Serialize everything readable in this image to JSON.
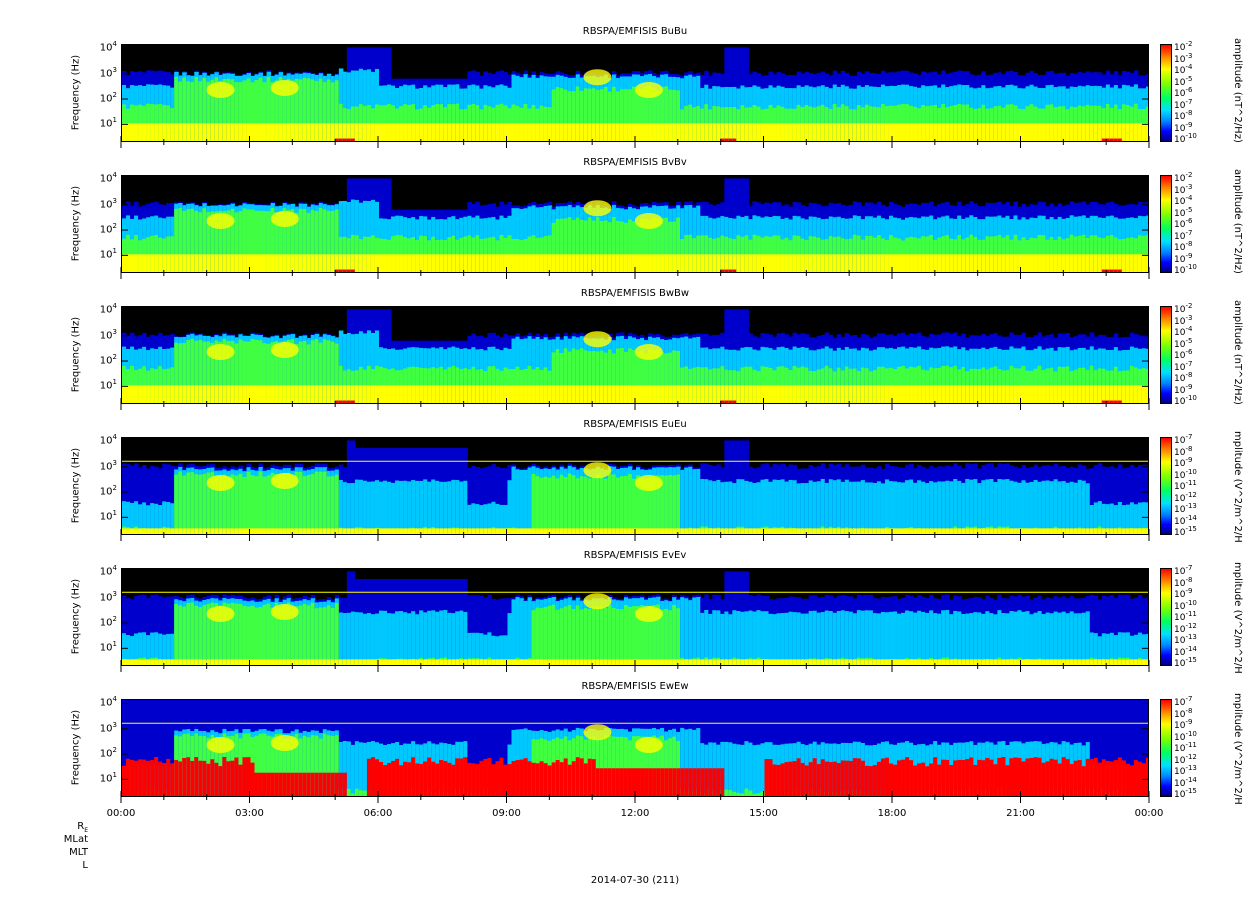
{
  "chart_data": [
    {
      "type": "heatmap",
      "title": "RBSPA/EMFISIS  BuBu",
      "ylabel": "Frequency (Hz)",
      "zlabel": "amplitude (nT^2/Hz)",
      "yscale": "log",
      "ylim": [
        2,
        15000
      ],
      "yticks": [
        "10",
        "10",
        "10",
        "10"
      ],
      "yexps": [
        "1",
        "2",
        "3",
        "4"
      ],
      "zticks": [
        "10",
        "10",
        "10",
        "10",
        "10",
        "10",
        "10",
        "10",
        "10"
      ],
      "zexps": [
        "-2",
        "-3",
        "-4",
        "-5",
        "-6",
        "-7",
        "-8",
        "-9",
        "-10"
      ]
    },
    {
      "type": "heatmap",
      "title": "RBSPA/EMFISIS  BvBv",
      "ylabel": "Frequency (Hz)",
      "zlabel": "amplitude (nT^2/Hz)",
      "yscale": "log",
      "ylim": [
        2,
        15000
      ],
      "yticks": [
        "10",
        "10",
        "10",
        "10"
      ],
      "yexps": [
        "1",
        "2",
        "3",
        "4"
      ],
      "zticks": [
        "10",
        "10",
        "10",
        "10",
        "10",
        "10",
        "10",
        "10",
        "10"
      ],
      "zexps": [
        "-2",
        "-3",
        "-4",
        "-5",
        "-6",
        "-7",
        "-8",
        "-9",
        "-10"
      ]
    },
    {
      "type": "heatmap",
      "title": "RBSPA/EMFISIS  BwBw",
      "ylabel": "Frequency (Hz)",
      "zlabel": "amplitude (nT^2/Hz)",
      "yscale": "log",
      "ylim": [
        2,
        15000
      ],
      "yticks": [
        "10",
        "10",
        "10",
        "10"
      ],
      "yexps": [
        "1",
        "2",
        "3",
        "4"
      ],
      "zticks": [
        "10",
        "10",
        "10",
        "10",
        "10",
        "10",
        "10",
        "10",
        "10"
      ],
      "zexps": [
        "-2",
        "-3",
        "-4",
        "-5",
        "-6",
        "-7",
        "-8",
        "-9",
        "-10"
      ]
    },
    {
      "type": "heatmap",
      "title": "RBSPA/EMFISIS  EuEu",
      "ylabel": "Frequency (Hz)",
      "zlabel": "mplitude (V^2/m^2/H",
      "yscale": "log",
      "ylim": [
        2,
        15000
      ],
      "yticks": [
        "10",
        "10",
        "10",
        "10"
      ],
      "yexps": [
        "1",
        "2",
        "3",
        "4"
      ],
      "zticks": [
        "10",
        "10",
        "10",
        "10",
        "10",
        "10",
        "10",
        "10",
        "10"
      ],
      "zexps": [
        "-7",
        "-8",
        "-9",
        "-10",
        "-11",
        "-12",
        "-13",
        "-14",
        "-15"
      ]
    },
    {
      "type": "heatmap",
      "title": "RBSPA/EMFISIS  EvEv",
      "ylabel": "Frequency (Hz)",
      "zlabel": "mplitude (V^2/m^2/H",
      "yscale": "log",
      "ylim": [
        2,
        15000
      ],
      "yticks": [
        "10",
        "10",
        "10",
        "10"
      ],
      "yexps": [
        "1",
        "2",
        "3",
        "4"
      ],
      "zticks": [
        "10",
        "10",
        "10",
        "10",
        "10",
        "10",
        "10",
        "10",
        "10"
      ],
      "zexps": [
        "-7",
        "-8",
        "-9",
        "-10",
        "-11",
        "-12",
        "-13",
        "-14",
        "-15"
      ]
    },
    {
      "type": "heatmap",
      "title": "RBSPA/EMFISIS  EwEw",
      "ylabel": "Frequency (Hz)",
      "zlabel": "mplitude (V^2/m^2/H",
      "yscale": "log",
      "ylim": [
        2,
        15000
      ],
      "yticks": [
        "10",
        "10",
        "10",
        "10"
      ],
      "yexps": [
        "1",
        "2",
        "3",
        "4"
      ],
      "zticks": [
        "10",
        "10",
        "10",
        "10",
        "10",
        "10",
        "10",
        "10",
        "10"
      ],
      "zexps": [
        "-7",
        "-8",
        "-9",
        "-10",
        "-11",
        "-12",
        "-13",
        "-14",
        "-15"
      ]
    }
  ],
  "x_axis": {
    "ticks": [
      "00:00",
      "03:00",
      "06:00",
      "09:00",
      "12:00",
      "15:00",
      "18:00",
      "21:00",
      "00:00"
    ]
  },
  "ephemeris": {
    "re": "R",
    "re_sub": "E",
    "mlat": "MLat",
    "mlt": "MLT",
    "l": "L"
  },
  "footer": {
    "date": "2014-07-30 (211)"
  },
  "colors": {
    "black": "#000000",
    "blue": "#0000cc",
    "cyan": "#00c8ff",
    "green": "#40ff40",
    "yellow": "#ffff00",
    "red": "#ff0000"
  }
}
